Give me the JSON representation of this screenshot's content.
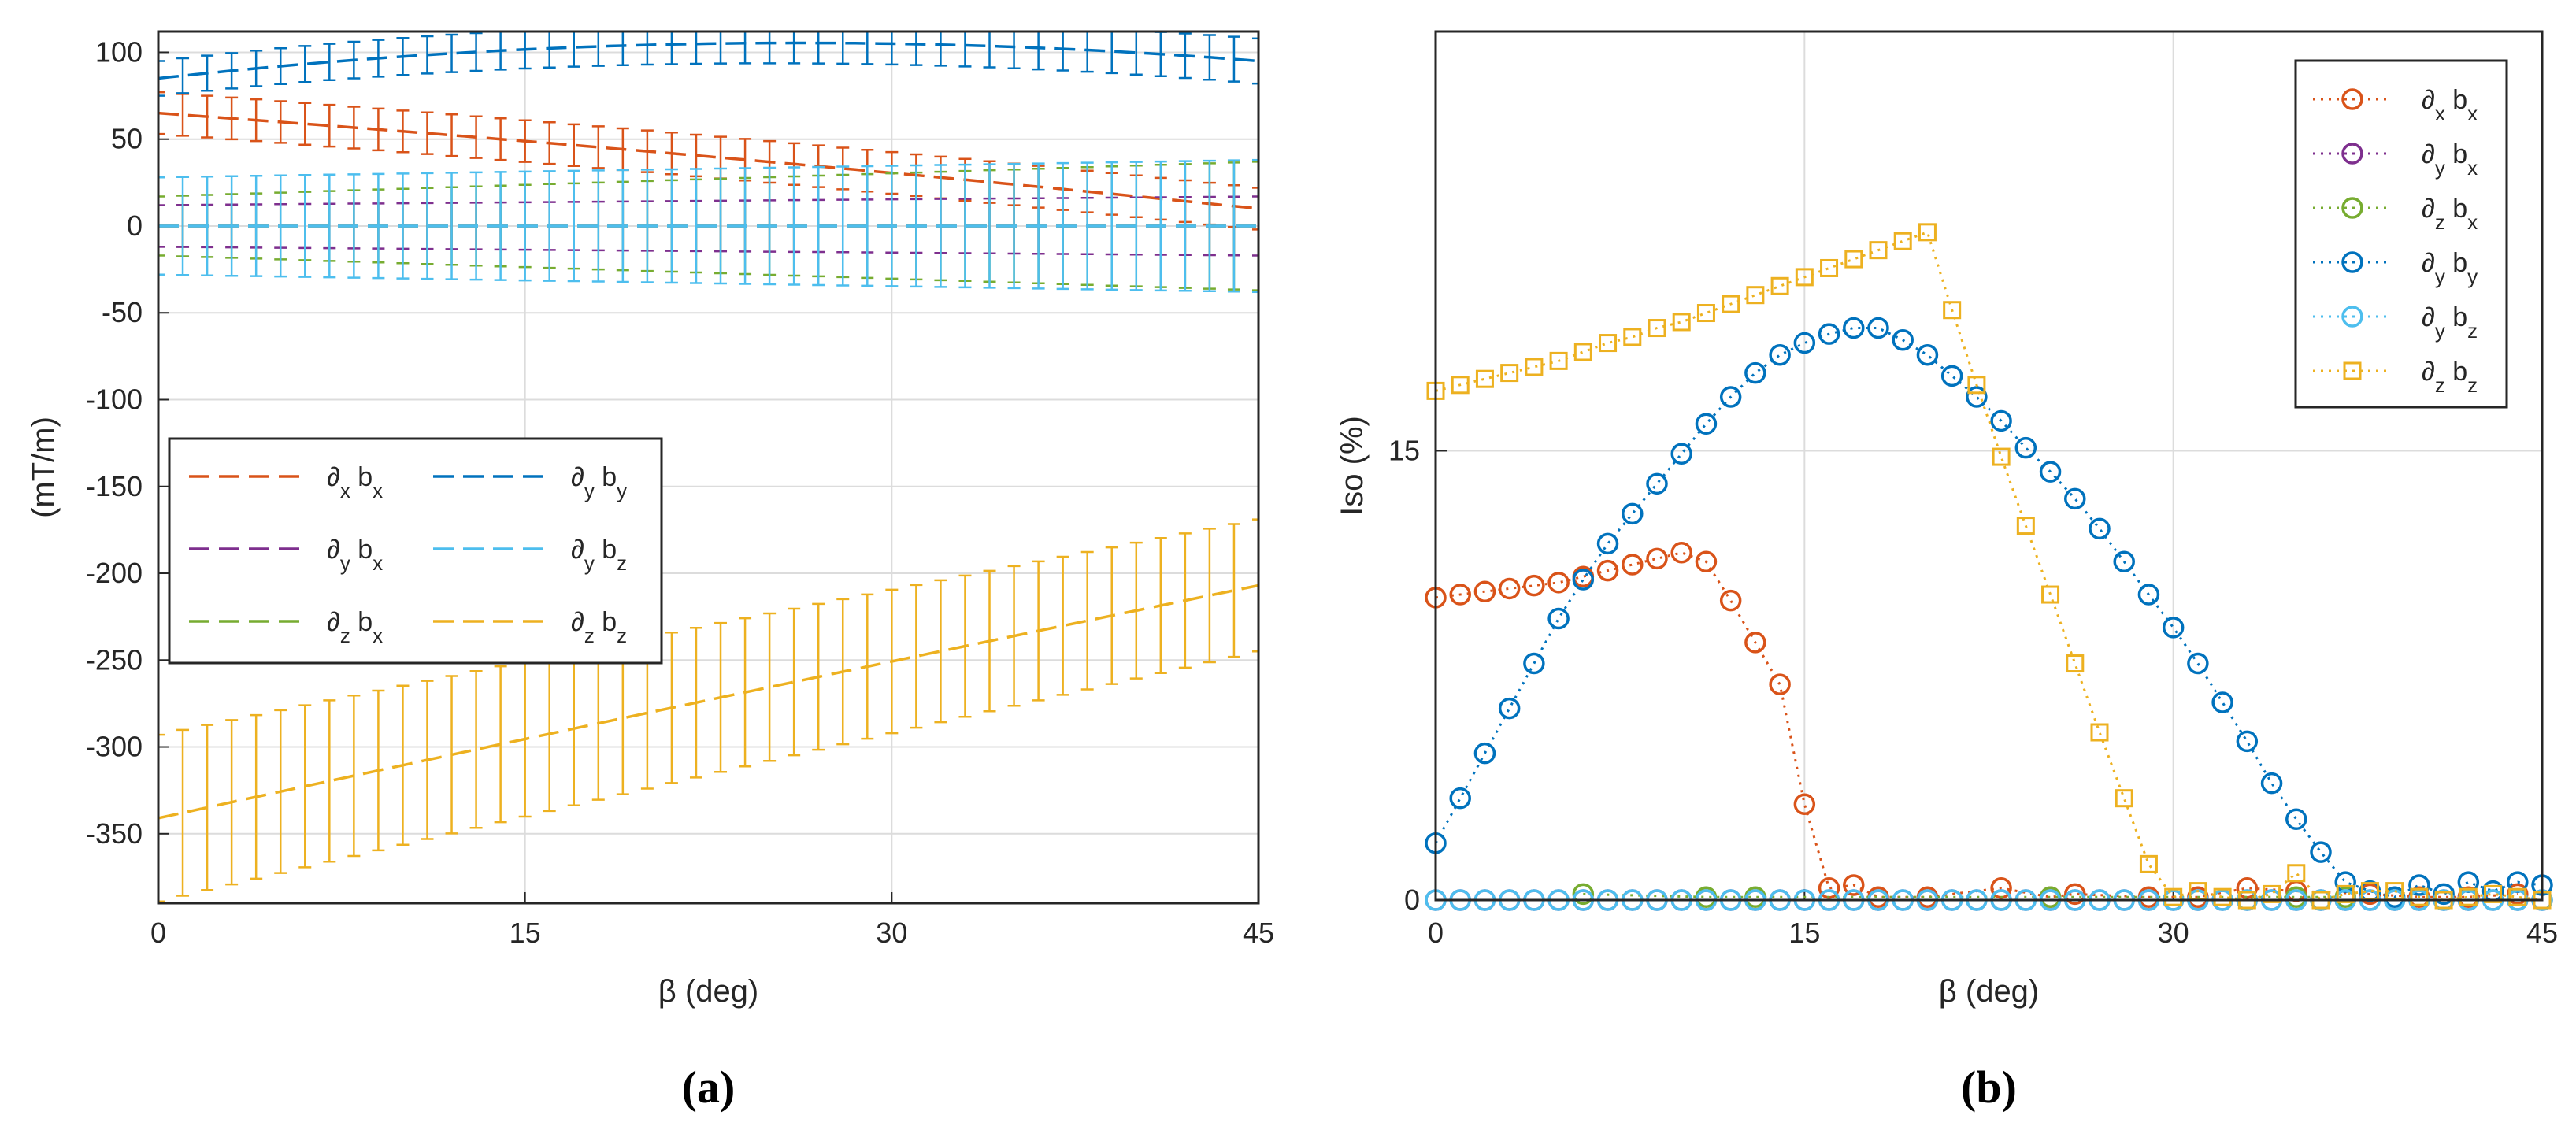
{
  "chart_data": [
    {
      "panel": "(a)",
      "type": "line",
      "title": "",
      "xlabel": "β (deg)",
      "ylabel": "(mT/m)",
      "xlim": [
        0,
        45
      ],
      "ylim": [
        -390,
        112
      ],
      "xticks": [
        0,
        15,
        30,
        45
      ],
      "yticks": [
        100,
        50,
        0,
        -50,
        -100,
        -150,
        -200,
        -250,
        -300,
        -350
      ],
      "grid": true,
      "legend_position": "lower-left",
      "error_bars": true,
      "series": [
        {
          "name": "∂x bx",
          "color": "#D95319",
          "mean": [
            65,
            40,
            10
          ],
          "err_start": 12,
          "err_end": 12
        },
        {
          "name": "∂y bx",
          "color": "#7E2F8E",
          "mean": [
            0,
            0,
            0
          ],
          "err_start": 12,
          "err_end": 17
        },
        {
          "name": "∂z bx",
          "color": "#77AC30",
          "mean": [
            0,
            0,
            0
          ],
          "err_start": 17,
          "err_end": 37
        },
        {
          "name": "∂y by",
          "color": "#0072BD",
          "mean": [
            85,
            105,
            95
          ],
          "err_start": 10,
          "err_end": 13
        },
        {
          "name": "∂y bz",
          "color": "#4DBEEE",
          "mean": [
            0,
            0,
            0
          ],
          "err_start": 28,
          "err_end": 38
        },
        {
          "name": "∂z bz",
          "color": "#EDB120",
          "mean": [
            -341,
            -273,
            -207
          ],
          "err_start": 48,
          "err_end": 38
        }
      ]
    },
    {
      "panel": "(b)",
      "type": "line",
      "title": "",
      "xlabel": "β (deg)",
      "ylabel": "Iso (%)",
      "xlim": [
        0,
        45
      ],
      "ylim": [
        0,
        29
      ],
      "xticks": [
        0,
        15,
        30,
        45
      ],
      "yticks": [
        0,
        15
      ],
      "grid": true,
      "legend_position": "top-right",
      "series": [
        {
          "name": "∂x bx",
          "color": "#D95319",
          "marker": "circle",
          "x": [
            0,
            1,
            2,
            3,
            4,
            5,
            6,
            7,
            8,
            9,
            10,
            11,
            12,
            13,
            14,
            15,
            16,
            17,
            18,
            20,
            23,
            25,
            26,
            29,
            31,
            33,
            35,
            38,
            40,
            42,
            44
          ],
          "y": [
            10.1,
            10.2,
            10.3,
            10.4,
            10.5,
            10.6,
            10.8,
            11,
            11.2,
            11.4,
            11.6,
            11.3,
            10,
            8.6,
            7.2,
            3.2,
            0.4,
            0.5,
            0.1,
            0.1,
            0.4,
            0.1,
            0.2,
            0.1,
            0.1,
            0.4,
            0.3,
            0.2,
            0.1,
            0.1,
            0.2
          ]
        },
        {
          "name": "∂y bx",
          "color": "#7E2F8E",
          "marker": "circle",
          "x": [
            0,
            45
          ],
          "y": [
            0,
            0
          ]
        },
        {
          "name": "∂z bx",
          "color": "#77AC30",
          "marker": "circle",
          "x": [
            6,
            11,
            13,
            25,
            35,
            37
          ],
          "y": [
            0.2,
            0.1,
            0.1,
            0.1,
            0.1,
            0.1
          ]
        },
        {
          "name": "∂y by",
          "color": "#0072BD",
          "marker": "circle",
          "x": [
            0,
            1,
            2,
            3,
            4,
            5,
            6,
            7,
            8,
            9,
            10,
            11,
            12,
            13,
            14,
            15,
            16,
            17,
            18,
            19,
            20,
            21,
            22,
            23,
            24,
            25,
            26,
            27,
            28,
            29,
            30,
            31,
            32,
            33,
            34,
            35,
            36,
            37,
            38,
            39,
            40,
            41,
            42,
            43,
            44,
            45
          ],
          "y": [
            1.9,
            3.4,
            4.9,
            6.4,
            7.9,
            9.4,
            10.7,
            11.9,
            12.9,
            13.9,
            14.9,
            15.9,
            16.8,
            17.6,
            18.2,
            18.6,
            18.9,
            19.1,
            19.1,
            18.7,
            18.2,
            17.5,
            16.8,
            16,
            15.1,
            14.3,
            13.4,
            12.4,
            11.3,
            10.2,
            9.1,
            7.9,
            6.6,
            5.3,
            3.9,
            2.7,
            1.6,
            0.6,
            0.3,
            0.1,
            0.5,
            0.2,
            0.6,
            0.3,
            0.6,
            0.5
          ]
        },
        {
          "name": "∂y bz",
          "color": "#4DBEEE",
          "marker": "circle",
          "x": [
            0,
            45
          ],
          "y": [
            0,
            0
          ]
        },
        {
          "name": "∂z bz",
          "color": "#EDB120",
          "marker": "square",
          "x": [
            0,
            1,
            2,
            3,
            4,
            5,
            6,
            7,
            8,
            9,
            10,
            11,
            12,
            13,
            14,
            15,
            16,
            17,
            18,
            19,
            20,
            21,
            22,
            23,
            24,
            25,
            26,
            27,
            28,
            29,
            30,
            31,
            32,
            33,
            34,
            35,
            36,
            37,
            38,
            39,
            40,
            41,
            42,
            43,
            44,
            45
          ],
          "y": [
            17,
            17.2,
            17.4,
            17.6,
            17.8,
            18,
            18.3,
            18.6,
            18.8,
            19.1,
            19.3,
            19.6,
            19.9,
            20.2,
            20.5,
            20.8,
            21.1,
            21.4,
            21.7,
            22,
            22.3,
            19.7,
            17.2,
            14.8,
            12.5,
            10.2,
            7.9,
            5.6,
            3.4,
            1.2,
            0.1,
            0.3,
            0.1,
            0,
            0.2,
            0.9,
            0,
            0.2,
            0.3,
            0.3,
            0.1,
            0,
            0.1,
            0.2,
            0.1,
            0
          ]
        }
      ]
    }
  ]
}
